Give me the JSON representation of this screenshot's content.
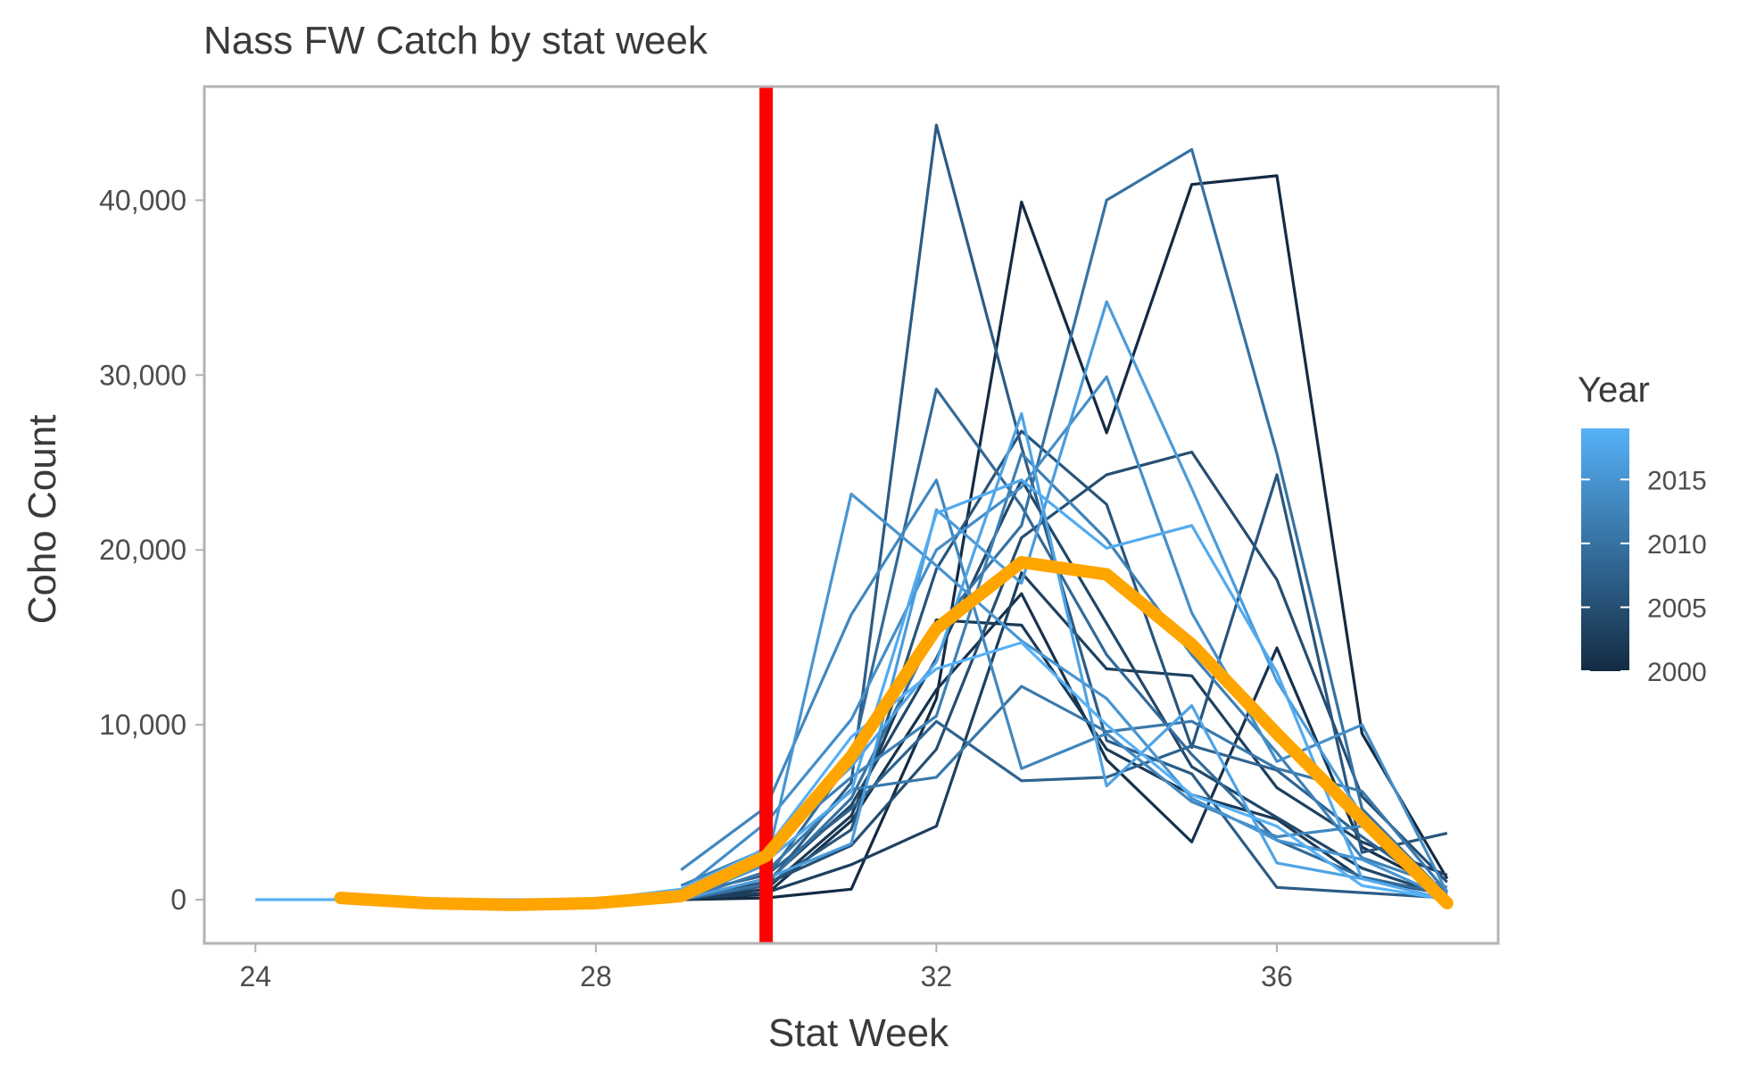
{
  "chart_data": {
    "type": "line",
    "title": "Nass FW Catch by stat week",
    "xlabel": "Stat Week",
    "ylabel": "Coho Count",
    "xlim": [
      23.4,
      38.6
    ],
    "ylim": [
      -2500,
      46500
    ],
    "x_ticks": [
      24,
      28,
      32,
      36
    ],
    "x_tick_labels": [
      "24",
      "28",
      "32",
      "36"
    ],
    "y_ticks": [
      0,
      10000,
      20000,
      30000,
      40000
    ],
    "y_tick_labels": [
      "0",
      "10,000",
      "20,000",
      "30,000",
      "40,000"
    ],
    "grid": false,
    "reference_line": {
      "x": 30,
      "color": "#ff0000"
    },
    "legend": {
      "title": "Year",
      "placement": "right",
      "color_scale": {
        "low": 2000,
        "high": 2019,
        "low_color": "#132b43",
        "high_color": "#56b1f7"
      },
      "ticks": [
        2000,
        2005,
        2010,
        2015
      ],
      "tick_labels": [
        "2000",
        "2005",
        "2010",
        "2015"
      ]
    },
    "series": [
      {
        "year": 2000,
        "points": [
          [
            29,
            0
          ],
          [
            30,
            100
          ],
          [
            31,
            600
          ],
          [
            32,
            11500
          ],
          [
            33,
            39900
          ],
          [
            34,
            26700
          ],
          [
            35,
            40900
          ],
          [
            36,
            41400
          ],
          [
            37,
            9500
          ],
          [
            38,
            1200
          ]
        ]
      },
      {
        "year": 2001,
        "points": [
          [
            29,
            0
          ],
          [
            30,
            300
          ],
          [
            31,
            4500
          ],
          [
            32,
            12000
          ],
          [
            33,
            17500
          ],
          [
            34,
            8000
          ],
          [
            35,
            3300
          ],
          [
            36,
            14400
          ],
          [
            37,
            3000
          ],
          [
            38,
            500
          ]
        ]
      },
      {
        "year": 2002,
        "points": [
          [
            29,
            0
          ],
          [
            30,
            600
          ],
          [
            31,
            4800
          ],
          [
            32,
            16000
          ],
          [
            33,
            15700
          ],
          [
            34,
            8600
          ],
          [
            35,
            6000
          ],
          [
            36,
            4600
          ],
          [
            37,
            1200
          ],
          [
            38,
            300
          ]
        ]
      },
      {
        "year": 2003,
        "points": [
          [
            29,
            0
          ],
          [
            30,
            400
          ],
          [
            31,
            2000
          ],
          [
            32,
            4200
          ],
          [
            33,
            18700
          ],
          [
            34,
            13200
          ],
          [
            35,
            12800
          ],
          [
            36,
            6400
          ],
          [
            37,
            3300
          ],
          [
            38,
            1400
          ]
        ]
      },
      {
        "year": 2004,
        "points": [
          [
            29,
            0
          ],
          [
            30,
            1000
          ],
          [
            31,
            5400
          ],
          [
            32,
            13800
          ],
          [
            33,
            24000
          ],
          [
            34,
            15800
          ],
          [
            35,
            7600
          ],
          [
            36,
            4700
          ],
          [
            37,
            1800
          ],
          [
            38,
            200
          ]
        ]
      },
      {
        "year": 2005,
        "points": [
          [
            29,
            0
          ],
          [
            30,
            900
          ],
          [
            31,
            3100
          ],
          [
            32,
            8600
          ],
          [
            33,
            20700
          ],
          [
            34,
            24300
          ],
          [
            35,
            25600
          ],
          [
            36,
            18300
          ],
          [
            37,
            5900
          ],
          [
            38,
            1000
          ]
        ]
      },
      {
        "year": 2006,
        "points": [
          [
            29,
            0
          ],
          [
            30,
            800
          ],
          [
            31,
            4000
          ],
          [
            32,
            18900
          ],
          [
            33,
            26800
          ],
          [
            34,
            22600
          ],
          [
            35,
            8700
          ],
          [
            36,
            24300
          ],
          [
            37,
            2700
          ],
          [
            38,
            3800
          ]
        ]
      },
      {
        "year": 2007,
        "points": [
          [
            29,
            0
          ],
          [
            30,
            800
          ],
          [
            31,
            6700
          ],
          [
            32,
            44300
          ],
          [
            33,
            25900
          ],
          [
            34,
            9100
          ],
          [
            35,
            7200
          ],
          [
            36,
            700
          ],
          [
            37,
            400
          ],
          [
            38,
            100
          ]
        ]
      },
      {
        "year": 2008,
        "points": [
          [
            29,
            300
          ],
          [
            30,
            1400
          ],
          [
            31,
            5200
          ],
          [
            32,
            10200
          ],
          [
            33,
            6800
          ],
          [
            34,
            7000
          ],
          [
            35,
            8800
          ],
          [
            36,
            7400
          ],
          [
            37,
            3600
          ],
          [
            38,
            200
          ]
        ]
      },
      {
        "year": 2009,
        "points": [
          [
            29,
            0
          ],
          [
            30,
            1200
          ],
          [
            31,
            8000
          ],
          [
            32,
            29200
          ],
          [
            33,
            22500
          ],
          [
            34,
            14000
          ],
          [
            35,
            8300
          ],
          [
            36,
            3400
          ],
          [
            37,
            1300
          ],
          [
            38,
            300
          ]
        ]
      },
      {
        "year": 2010,
        "points": [
          [
            29,
            0
          ],
          [
            30,
            900
          ],
          [
            31,
            5800
          ],
          [
            32,
            15500
          ],
          [
            33,
            21400
          ],
          [
            34,
            40000
          ],
          [
            35,
            42900
          ],
          [
            36,
            25500
          ],
          [
            37,
            5200
          ],
          [
            38,
            200
          ]
        ]
      },
      {
        "year": 2011,
        "points": [
          [
            29,
            0
          ],
          [
            30,
            1600
          ],
          [
            31,
            6300
          ],
          [
            32,
            7000
          ],
          [
            33,
            12200
          ],
          [
            34,
            9600
          ],
          [
            35,
            10200
          ],
          [
            36,
            7500
          ],
          [
            37,
            6200
          ],
          [
            38,
            400
          ]
        ]
      },
      {
        "year": 2012,
        "points": [
          [
            29,
            800
          ],
          [
            30,
            2900
          ],
          [
            31,
            7000
          ],
          [
            32,
            10500
          ],
          [
            33,
            25500
          ],
          [
            34,
            20600
          ],
          [
            35,
            14000
          ],
          [
            36,
            8400
          ],
          [
            37,
            2400
          ],
          [
            38,
            700
          ]
        ]
      },
      {
        "year": 2013,
        "points": [
          [
            29,
            1700
          ],
          [
            30,
            5300
          ],
          [
            31,
            16300
          ],
          [
            32,
            24000
          ],
          [
            33,
            7500
          ],
          [
            34,
            9500
          ],
          [
            35,
            5600
          ],
          [
            36,
            3600
          ],
          [
            37,
            4200
          ],
          [
            38,
            0
          ]
        ]
      },
      {
        "year": 2014,
        "points": [
          [
            29,
            500
          ],
          [
            30,
            4400
          ],
          [
            31,
            10300
          ],
          [
            32,
            20000
          ],
          [
            33,
            23600
          ],
          [
            34,
            29900
          ],
          [
            35,
            16400
          ],
          [
            36,
            7900
          ],
          [
            37,
            10000
          ],
          [
            38,
            400
          ]
        ]
      },
      {
        "year": 2015,
        "points": [
          [
            29,
            0
          ],
          [
            30,
            2000
          ],
          [
            31,
            23200
          ],
          [
            32,
            19100
          ],
          [
            33,
            14800
          ],
          [
            34,
            11500
          ],
          [
            35,
            5800
          ],
          [
            36,
            3400
          ],
          [
            37,
            2300
          ],
          [
            38,
            100
          ]
        ]
      },
      {
        "year": 2016,
        "points": [
          [
            29,
            0
          ],
          [
            30,
            1200
          ],
          [
            31,
            3200
          ],
          [
            32,
            22300
          ],
          [
            33,
            18100
          ],
          [
            34,
            34200
          ],
          [
            35,
            23500
          ],
          [
            36,
            12500
          ],
          [
            37,
            4800
          ],
          [
            38,
            0
          ]
        ]
      },
      {
        "year": 2017,
        "points": [
          [
            29,
            200
          ],
          [
            30,
            3000
          ],
          [
            31,
            7600
          ],
          [
            32,
            13600
          ],
          [
            33,
            27800
          ],
          [
            34,
            6500
          ],
          [
            35,
            11100
          ],
          [
            36,
            2100
          ],
          [
            37,
            1200
          ],
          [
            38,
            0
          ]
        ]
      },
      {
        "year": 2018,
        "points": [
          [
            29,
            0
          ],
          [
            30,
            2200
          ],
          [
            31,
            6200
          ],
          [
            32,
            22100
          ],
          [
            33,
            24000
          ],
          [
            34,
            20100
          ],
          [
            35,
            21400
          ],
          [
            36,
            13000
          ],
          [
            37,
            1200
          ],
          [
            38,
            0
          ]
        ]
      },
      {
        "year": 2019,
        "points": [
          [
            24,
            0
          ],
          [
            25,
            0
          ],
          [
            26,
            0
          ],
          [
            27,
            0
          ],
          [
            28,
            0
          ],
          [
            29,
            600
          ],
          [
            30,
            2900
          ],
          [
            31,
            9300
          ],
          [
            32,
            13200
          ],
          [
            33,
            14700
          ],
          [
            34,
            10000
          ],
          [
            35,
            6000
          ],
          [
            36,
            4200
          ],
          [
            37,
            800
          ],
          [
            38,
            0
          ]
        ]
      }
    ],
    "mean_series": {
      "color": "#ffa500",
      "points": [
        [
          25,
          100
        ],
        [
          26,
          -200
        ],
        [
          27,
          -300
        ],
        [
          28,
          -200
        ],
        [
          29,
          200
        ],
        [
          30,
          2500
        ],
        [
          31,
          8200
        ],
        [
          32,
          15500
        ],
        [
          33,
          19300
        ],
        [
          34,
          18600
        ],
        [
          35,
          14600
        ],
        [
          36,
          9500
        ],
        [
          37,
          4600
        ],
        [
          38,
          -200
        ]
      ]
    }
  }
}
